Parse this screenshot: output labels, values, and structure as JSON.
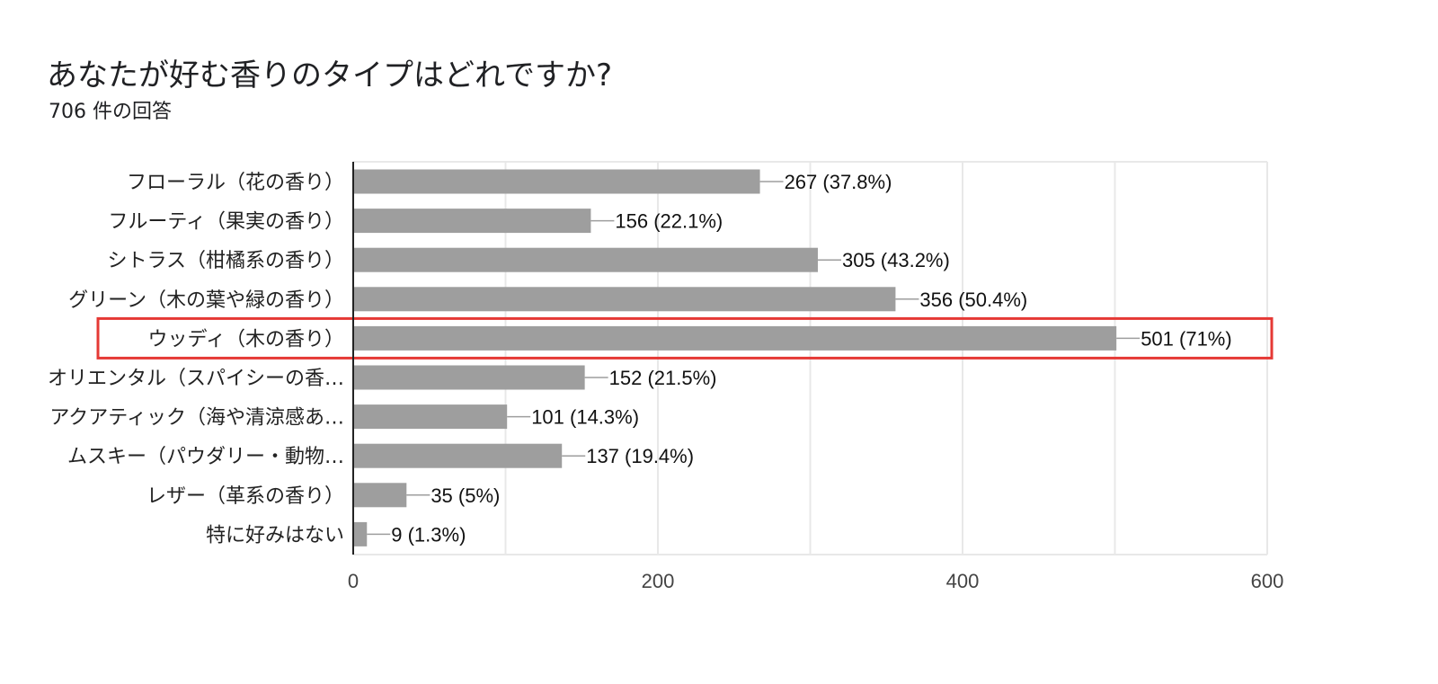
{
  "header": {
    "title": "あなたが好む香りのタイプはどれですか?",
    "subtitle": "706 件の回答"
  },
  "colors": {
    "bar": "#9e9e9e",
    "grid": "#e8e8e8",
    "axis": "#222222",
    "highlight": "#e53935"
  },
  "chart_data": {
    "type": "bar",
    "orientation": "horizontal",
    "title": "あなたが好む香りのタイプはどれですか?",
    "subtitle": "706 件の回答",
    "categories": [
      "フローラル（花の香り）",
      "フルーティ（果実の香り）",
      "シトラス（柑橘系の香り）",
      "グリーン（木の葉や緑の香り）",
      "ウッディ（木の香り）",
      "オリエンタル（スパイシーの香…",
      "アクアティック（海や清涼感あ…",
      "ムスキー（パウダリー・動物…",
      "レザー（革系の香り）",
      "特に好みはない"
    ],
    "values": [
      267,
      156,
      305,
      356,
      501,
      152,
      101,
      137,
      35,
      9
    ],
    "value_labels": [
      "267 (37.8%)",
      "156 (22.1%)",
      "305 (43.2%)",
      "356 (50.4%)",
      "501 (71%)",
      "152 (21.5%)",
      "101 (14.3%)",
      "137 (19.4%)",
      "35 (5%)",
      "9 (1.3%)"
    ],
    "xlim": [
      0,
      600
    ],
    "xticks": [
      0,
      200,
      400,
      600
    ],
    "grid": true,
    "highlighted_category": "ウッディ（木の香り）"
  }
}
